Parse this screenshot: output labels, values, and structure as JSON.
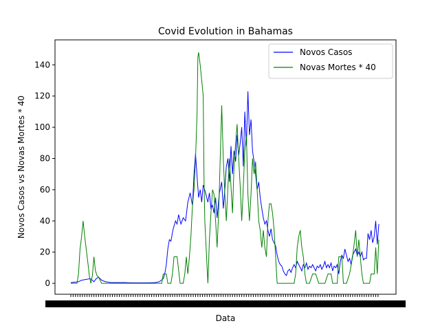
{
  "chart_data": {
    "type": "line",
    "title": "Covid Evolution in Bahamas",
    "xlabel": "Data",
    "ylabel": "Novos Casos vs Novas Mortes * 40",
    "ylim": [
      -7,
      156
    ],
    "yticks": [
      0,
      20,
      40,
      60,
      80,
      100,
      120,
      140
    ],
    "x_count": 400,
    "legend_position": "top-right",
    "grid": false,
    "series": [
      {
        "name": "Novos Casos",
        "color": "#0000ff",
        "keypoints": [
          [
            0,
            0.5
          ],
          [
            10,
            1
          ],
          [
            14,
            2
          ],
          [
            20,
            2.5
          ],
          [
            25,
            3
          ],
          [
            28,
            2
          ],
          [
            30,
            1
          ],
          [
            33,
            3
          ],
          [
            36,
            4
          ],
          [
            40,
            2
          ],
          [
            45,
            1
          ],
          [
            52,
            0.5
          ],
          [
            60,
            0.5
          ],
          [
            70,
            0.5
          ],
          [
            80,
            0.3
          ],
          [
            90,
            0.3
          ],
          [
            100,
            0.3
          ],
          [
            110,
            0.5
          ],
          [
            115,
            1
          ],
          [
            120,
            3
          ],
          [
            122,
            6
          ],
          [
            124,
            12
          ],
          [
            126,
            22
          ],
          [
            128,
            28
          ],
          [
            130,
            27
          ],
          [
            133,
            35
          ],
          [
            136,
            40
          ],
          [
            138,
            38
          ],
          [
            140,
            44
          ],
          [
            143,
            38
          ],
          [
            146,
            42
          ],
          [
            149,
            40
          ],
          [
            152,
            52
          ],
          [
            155,
            58
          ],
          [
            158,
            50
          ],
          [
            160,
            70
          ],
          [
            162,
            83
          ],
          [
            164,
            68
          ],
          [
            166,
            55
          ],
          [
            168,
            60
          ],
          [
            170,
            52
          ],
          [
            172,
            63
          ],
          [
            175,
            58
          ],
          [
            178,
            52
          ],
          [
            180,
            58
          ],
          [
            182,
            48
          ],
          [
            184,
            50
          ],
          [
            186,
            45
          ],
          [
            188,
            55
          ],
          [
            190,
            42
          ],
          [
            193,
            58
          ],
          [
            196,
            65
          ],
          [
            198,
            48
          ],
          [
            200,
            60
          ],
          [
            202,
            75
          ],
          [
            204,
            80
          ],
          [
            206,
            65
          ],
          [
            208,
            88
          ],
          [
            210,
            70
          ],
          [
            212,
            85
          ],
          [
            214,
            78
          ],
          [
            216,
            95
          ],
          [
            218,
            82
          ],
          [
            220,
            90
          ],
          [
            222,
            100
          ],
          [
            224,
            75
          ],
          [
            226,
            110
          ],
          [
            228,
            88
          ],
          [
            230,
            123
          ],
          [
            232,
            95
          ],
          [
            234,
            105
          ],
          [
            236,
            85
          ],
          [
            238,
            78
          ],
          [
            240,
            70
          ],
          [
            242,
            60
          ],
          [
            244,
            65
          ],
          [
            246,
            55
          ],
          [
            248,
            48
          ],
          [
            250,
            42
          ],
          [
            252,
            38
          ],
          [
            254,
            40
          ],
          [
            256,
            34
          ],
          [
            258,
            30
          ],
          [
            260,
            35
          ],
          [
            262,
            28
          ],
          [
            264,
            26
          ],
          [
            266,
            24
          ],
          [
            268,
            18
          ],
          [
            270,
            14
          ],
          [
            272,
            12
          ],
          [
            274,
            11
          ],
          [
            276,
            8
          ],
          [
            278,
            6
          ],
          [
            280,
            5
          ],
          [
            282,
            8
          ],
          [
            284,
            9
          ],
          [
            286,
            7
          ],
          [
            288,
            10
          ],
          [
            290,
            12
          ],
          [
            292,
            10
          ],
          [
            294,
            14
          ],
          [
            296,
            12
          ],
          [
            298,
            10
          ],
          [
            300,
            8
          ],
          [
            302,
            12
          ],
          [
            304,
            10
          ],
          [
            306,
            13
          ],
          [
            308,
            9
          ],
          [
            310,
            11
          ],
          [
            312,
            10
          ],
          [
            314,
            12
          ],
          [
            316,
            10
          ],
          [
            318,
            8
          ],
          [
            320,
            11
          ],
          [
            322,
            10
          ],
          [
            324,
            12
          ],
          [
            326,
            9
          ],
          [
            328,
            11
          ],
          [
            330,
            14
          ],
          [
            332,
            10
          ],
          [
            334,
            12
          ],
          [
            336,
            10
          ],
          [
            338,
            13
          ],
          [
            340,
            8
          ],
          [
            342,
            11
          ],
          [
            344,
            10
          ],
          [
            346,
            12
          ],
          [
            348,
            6
          ],
          [
            350,
            14
          ],
          [
            352,
            18
          ],
          [
            354,
            16
          ],
          [
            356,
            22
          ],
          [
            358,
            18
          ],
          [
            360,
            14
          ],
          [
            362,
            16
          ],
          [
            364,
            12
          ],
          [
            366,
            18
          ],
          [
            368,
            20
          ],
          [
            370,
            22
          ],
          [
            372,
            18
          ],
          [
            374,
            20
          ],
          [
            376,
            17
          ],
          [
            378,
            20
          ],
          [
            380,
            15
          ],
          [
            382,
            16
          ],
          [
            384,
            16
          ],
          [
            386,
            32
          ],
          [
            388,
            28
          ],
          [
            390,
            34
          ],
          [
            392,
            26
          ],
          [
            394,
            30
          ],
          [
            396,
            40
          ],
          [
            398,
            25
          ],
          [
            400,
            38
          ]
        ]
      },
      {
        "name": "Novas Mortes * 40",
        "color": "#008000",
        "keypoints": [
          [
            0,
            0
          ],
          [
            8,
            0
          ],
          [
            10,
            6
          ],
          [
            12,
            22
          ],
          [
            14,
            30
          ],
          [
            16,
            40
          ],
          [
            18,
            30
          ],
          [
            20,
            22
          ],
          [
            22,
            14
          ],
          [
            24,
            5
          ],
          [
            26,
            0
          ],
          [
            28,
            5
          ],
          [
            30,
            17
          ],
          [
            32,
            8
          ],
          [
            34,
            5
          ],
          [
            36,
            4
          ],
          [
            38,
            2
          ],
          [
            40,
            0
          ],
          [
            60,
            0
          ],
          [
            80,
            0
          ],
          [
            100,
            0
          ],
          [
            118,
            0
          ],
          [
            120,
            6
          ],
          [
            124,
            6
          ],
          [
            126,
            0
          ],
          [
            130,
            0
          ],
          [
            132,
            6
          ],
          [
            134,
            17
          ],
          [
            138,
            17
          ],
          [
            142,
            0
          ],
          [
            146,
            0
          ],
          [
            148,
            6
          ],
          [
            150,
            17
          ],
          [
            152,
            6
          ],
          [
            154,
            17
          ],
          [
            156,
            30
          ],
          [
            158,
            50
          ],
          [
            160,
            60
          ],
          [
            162,
            80
          ],
          [
            164,
            110
          ],
          [
            165,
            145
          ],
          [
            166,
            148
          ],
          [
            168,
            140
          ],
          [
            170,
            130
          ],
          [
            172,
            120
          ],
          [
            173,
            65
          ],
          [
            174,
            40
          ],
          [
            176,
            20
          ],
          [
            178,
            0
          ],
          [
            180,
            28
          ],
          [
            182,
            45
          ],
          [
            184,
            60
          ],
          [
            186,
            57
          ],
          [
            188,
            40
          ],
          [
            190,
            23
          ],
          [
            192,
            45
          ],
          [
            194,
            80
          ],
          [
            196,
            114
          ],
          [
            198,
            80
          ],
          [
            200,
            57
          ],
          [
            202,
            40
          ],
          [
            204,
            62
          ],
          [
            206,
            80
          ],
          [
            208,
            62
          ],
          [
            210,
            45
          ],
          [
            212,
            75
          ],
          [
            214,
            90
          ],
          [
            216,
            102
          ],
          [
            218,
            80
          ],
          [
            220,
            62
          ],
          [
            222,
            40
          ],
          [
            224,
            62
          ],
          [
            226,
            85
          ],
          [
            228,
            95
          ],
          [
            230,
            57
          ],
          [
            232,
            40
          ],
          [
            234,
            57
          ],
          [
            236,
            80
          ],
          [
            238,
            70
          ],
          [
            240,
            78
          ],
          [
            242,
            60
          ],
          [
            244,
            40
          ],
          [
            246,
            34
          ],
          [
            248,
            23
          ],
          [
            250,
            34
          ],
          [
            252,
            23
          ],
          [
            254,
            17
          ],
          [
            256,
            40
          ],
          [
            258,
            51
          ],
          [
            260,
            51
          ],
          [
            262,
            45
          ],
          [
            264,
            34
          ],
          [
            266,
            17
          ],
          [
            268,
            0
          ],
          [
            280,
            0
          ],
          [
            290,
            0
          ],
          [
            292,
            6
          ],
          [
            294,
            23
          ],
          [
            296,
            30
          ],
          [
            298,
            34
          ],
          [
            300,
            23
          ],
          [
            302,
            17
          ],
          [
            304,
            6
          ],
          [
            306,
            0
          ],
          [
            310,
            0
          ],
          [
            314,
            6
          ],
          [
            318,
            6
          ],
          [
            322,
            0
          ],
          [
            330,
            0
          ],
          [
            334,
            6
          ],
          [
            338,
            6
          ],
          [
            340,
            0
          ],
          [
            346,
            0
          ],
          [
            348,
            17
          ],
          [
            352,
            17
          ],
          [
            354,
            0
          ],
          [
            358,
            0
          ],
          [
            362,
            6
          ],
          [
            366,
            17
          ],
          [
            370,
            34
          ],
          [
            372,
            17
          ],
          [
            374,
            28
          ],
          [
            376,
            17
          ],
          [
            378,
            6
          ],
          [
            380,
            0
          ],
          [
            388,
            0
          ],
          [
            390,
            6
          ],
          [
            394,
            6
          ],
          [
            396,
            23
          ],
          [
            398,
            6
          ],
          [
            400,
            28
          ]
        ]
      }
    ]
  }
}
